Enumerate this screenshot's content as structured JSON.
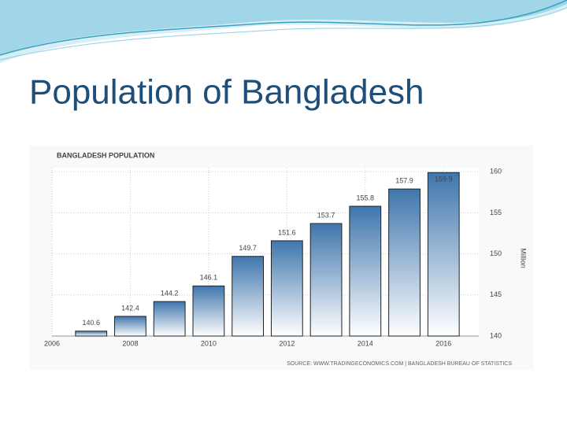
{
  "title": "Population of Bangladesh",
  "chart_data": {
    "type": "bar",
    "title": "BANGLADESH POPULATION",
    "x": [
      2007,
      2008,
      2009,
      2010,
      2011,
      2012,
      2013,
      2014,
      2015,
      2016
    ],
    "values": [
      140.6,
      142.4,
      144.2,
      146.1,
      149.7,
      151.6,
      153.7,
      155.8,
      157.9,
      159.9
    ],
    "color": "#3f76ad",
    "xlim": [
      2006,
      2016.9
    ],
    "xticks": [
      2006,
      2008,
      2010,
      2012,
      2014,
      2016
    ],
    "ylim": [
      140,
      160.5
    ],
    "yticks": [
      140,
      145,
      150,
      155,
      160
    ],
    "ylabel": "Million",
    "source": "SOURCE: WWW.TRADINGECONOMICS.COM | BANGLADESH BUREAU OF STATISTICS",
    "grid": true
  }
}
